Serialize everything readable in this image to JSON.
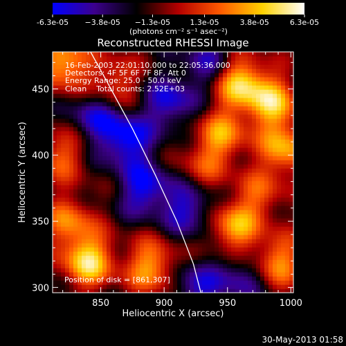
{
  "colorbar": {
    "tick_labels": [
      "-6.3e-05",
      "−3.8e-05",
      "−1.3e-05",
      "1.3e-05",
      "3.8e-05",
      "6.3e-05"
    ],
    "tick_values": [
      -6.3e-05,
      -3.8e-05,
      -1.3e-05,
      1.3e-05,
      3.8e-05,
      6.3e-05
    ],
    "range": [
      -6.3e-05,
      6.3e-05
    ],
    "unit_label": "(photons cm⁻² s⁻¹ asec⁻²)",
    "colors": [
      "#0000ff",
      "#3c008c",
      "#000000",
      "#b40000",
      "#ff5a00",
      "#ffd200",
      "#ffffff"
    ]
  },
  "chart_data": {
    "type": "heatmap",
    "title": "Reconstructed RHESSI Image",
    "xlabel": "Heliocentric X (arcsec)",
    "ylabel": "Heliocentric Y (arcsec)",
    "xlim": [
      812,
      1002
    ],
    "ylim": [
      296,
      478
    ],
    "xticks": [
      850,
      900,
      950,
      1000
    ],
    "yticks": [
      300,
      350,
      400,
      450
    ],
    "info_lines": [
      "16-Feb-2003 22:01:10.000 to 22:05:36.000",
      "Detectors: 4F 5F 6F 7F 8F, Att 0",
      "Energy Range: 25.0 - 50.0 keV",
      "Clean    Total counts: 2.52E+03"
    ],
    "position_label": "Position of disk = [861,307]",
    "limb_curve": [
      [
        842,
        478
      ],
      [
        858,
        450
      ],
      [
        875,
        420
      ],
      [
        893,
        385
      ],
      [
        910,
        350
      ],
      [
        923,
        318
      ],
      [
        929,
        296
      ]
    ],
    "intensity_sources": [
      {
        "x": 820,
        "y": 470,
        "value": 5.5e-05
      },
      {
        "x": 860,
        "y": 455,
        "value": 3.5e-05
      },
      {
        "x": 840,
        "y": 320,
        "value": 6.3e-05
      },
      {
        "x": 890,
        "y": 316,
        "value": 5e-05
      },
      {
        "x": 825,
        "y": 350,
        "value": 4e-05
      },
      {
        "x": 818,
        "y": 400,
        "value": 3.5e-05
      },
      {
        "x": 960,
        "y": 455,
        "value": 6e-05
      },
      {
        "x": 985,
        "y": 440,
        "value": 5.5e-05
      },
      {
        "x": 945,
        "y": 415,
        "value": 4.5e-05
      },
      {
        "x": 995,
        "y": 405,
        "value": 5e-05
      },
      {
        "x": 955,
        "y": 345,
        "value": 5e-05
      },
      {
        "x": 990,
        "y": 320,
        "value": 4.5e-05
      },
      {
        "x": 930,
        "y": 390,
        "value": 2.5e-05
      },
      {
        "x": 975,
        "y": 370,
        "value": 3e-05
      },
      {
        "x": 870,
        "y": 412,
        "value": -5e-05
      },
      {
        "x": 845,
        "y": 430,
        "value": -3.5e-05
      },
      {
        "x": 905,
        "y": 440,
        "value": -4e-05
      },
      {
        "x": 885,
        "y": 375,
        "value": -4.5e-05
      },
      {
        "x": 920,
        "y": 360,
        "value": -4e-05
      },
      {
        "x": 925,
        "y": 300,
        "value": -3.5e-05
      },
      {
        "x": 960,
        "y": 308,
        "value": -3e-05
      },
      {
        "x": 935,
        "y": 470,
        "value": -3e-05
      }
    ]
  },
  "footer": {
    "timestamp": "30-May-2013 01:58"
  }
}
